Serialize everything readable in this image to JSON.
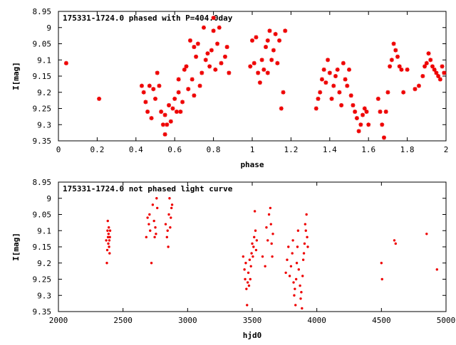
{
  "chart_data": [
    {
      "type": "scatter",
      "title": "175331-1724.0 phased with P=404.0day",
      "xlabel": "phase",
      "ylabel": "I[mag]",
      "xlim": [
        0,
        2
      ],
      "ylim": [
        8.95,
        9.35
      ],
      "y_inverted": true,
      "grid": false,
      "marker_color": "#ee0000",
      "marker": "asterisk",
      "xticks": [
        "0",
        "0.2",
        "0.4",
        "0.6",
        "0.8",
        "1",
        "1.2",
        "1.4",
        "1.6",
        "1.8",
        "2"
      ],
      "yticks": [
        "8.95",
        "9",
        "9.05",
        "9.1",
        "9.15",
        "9.2",
        "9.25",
        "9.3",
        "9.35"
      ],
      "series": [
        {
          "points": [
            [
              0.04,
              9.11
            ],
            [
              0.21,
              9.22
            ],
            [
              0.43,
              9.18
            ],
            [
              0.44,
              9.2
            ],
            [
              0.45,
              9.23
            ],
            [
              0.46,
              9.26
            ],
            [
              0.47,
              9.18
            ],
            [
              0.48,
              9.28
            ],
            [
              0.49,
              9.19
            ],
            [
              0.5,
              9.22
            ],
            [
              0.51,
              9.14
            ],
            [
              0.52,
              9.18
            ],
            [
              0.53,
              9.26
            ],
            [
              0.54,
              9.3
            ],
            [
              0.55,
              9.27
            ],
            [
              0.55,
              9.33
            ],
            [
              0.56,
              9.3
            ],
            [
              0.57,
              9.24
            ],
            [
              0.58,
              9.29
            ],
            [
              0.59,
              9.25
            ],
            [
              0.6,
              9.22
            ],
            [
              0.61,
              9.26
            ],
            [
              0.62,
              9.2
            ],
            [
              0.62,
              9.16
            ],
            [
              0.63,
              9.26
            ],
            [
              0.64,
              9.23
            ],
            [
              0.65,
              9.13
            ],
            [
              0.66,
              9.12
            ],
            [
              0.67,
              9.19
            ],
            [
              0.68,
              9.04
            ],
            [
              0.69,
              9.16
            ],
            [
              0.7,
              9.21
            ],
            [
              0.7,
              9.06
            ],
            [
              0.71,
              9.09
            ],
            [
              0.72,
              9.05
            ],
            [
              0.73,
              9.18
            ],
            [
              0.74,
              9.14
            ],
            [
              0.75,
              9.0
            ],
            [
              0.76,
              9.1
            ],
            [
              0.77,
              9.08
            ],
            [
              0.78,
              9.12
            ],
            [
              0.79,
              9.07
            ],
            [
              0.8,
              9.01
            ],
            [
              0.8,
              8.97
            ],
            [
              0.81,
              9.13
            ],
            [
              0.82,
              9.05
            ],
            [
              0.83,
              9.0
            ],
            [
              0.84,
              9.11
            ],
            [
              0.86,
              9.09
            ],
            [
              0.87,
              9.06
            ],
            [
              0.88,
              9.14
            ],
            [
              0.99,
              9.12
            ],
            [
              1.0,
              9.04
            ],
            [
              1.01,
              9.11
            ],
            [
              1.02,
              9.03
            ],
            [
              1.03,
              9.14
            ],
            [
              1.04,
              9.17
            ],
            [
              1.05,
              9.1
            ],
            [
              1.06,
              9.13
            ],
            [
              1.07,
              9.06
            ],
            [
              1.08,
              9.14
            ],
            [
              1.08,
              9.04
            ],
            [
              1.09,
              9.01
            ],
            [
              1.1,
              9.1
            ],
            [
              1.11,
              9.07
            ],
            [
              1.12,
              9.02
            ],
            [
              1.13,
              9.11
            ],
            [
              1.14,
              9.04
            ],
            [
              1.15,
              9.25
            ],
            [
              1.16,
              9.2
            ],
            [
              1.17,
              9.01
            ],
            [
              1.33,
              9.25
            ],
            [
              1.34,
              9.22
            ],
            [
              1.35,
              9.2
            ],
            [
              1.36,
              9.16
            ],
            [
              1.37,
              9.13
            ],
            [
              1.38,
              9.17
            ],
            [
              1.39,
              9.1
            ],
            [
              1.4,
              9.14
            ],
            [
              1.41,
              9.22
            ],
            [
              1.42,
              9.18
            ],
            [
              1.43,
              9.15
            ],
            [
              1.44,
              9.13
            ],
            [
              1.45,
              9.2
            ],
            [
              1.46,
              9.24
            ],
            [
              1.47,
              9.11
            ],
            [
              1.48,
              9.16
            ],
            [
              1.49,
              9.18
            ],
            [
              1.5,
              9.13
            ],
            [
              1.51,
              9.21
            ],
            [
              1.52,
              9.24
            ],
            [
              1.53,
              9.26
            ],
            [
              1.54,
              9.28
            ],
            [
              1.55,
              9.32
            ],
            [
              1.56,
              9.3
            ],
            [
              1.57,
              9.27
            ],
            [
              1.58,
              9.25
            ],
            [
              1.59,
              9.26
            ],
            [
              1.6,
              9.3
            ],
            [
              1.65,
              9.22
            ],
            [
              1.66,
              9.26
            ],
            [
              1.67,
              9.3
            ],
            [
              1.68,
              9.34
            ],
            [
              1.69,
              9.26
            ],
            [
              1.7,
              9.2
            ],
            [
              1.71,
              9.12
            ],
            [
              1.72,
              9.1
            ],
            [
              1.73,
              9.05
            ],
            [
              1.74,
              9.07
            ],
            [
              1.75,
              9.09
            ],
            [
              1.76,
              9.12
            ],
            [
              1.77,
              9.13
            ],
            [
              1.78,
              9.2
            ],
            [
              1.8,
              9.13
            ],
            [
              1.84,
              9.19
            ],
            [
              1.86,
              9.18
            ],
            [
              1.88,
              9.15
            ],
            [
              1.89,
              9.12
            ],
            [
              1.9,
              9.11
            ],
            [
              1.91,
              9.08
            ],
            [
              1.92,
              9.1
            ],
            [
              1.93,
              9.12
            ],
            [
              1.94,
              9.13
            ],
            [
              1.95,
              9.14
            ],
            [
              1.96,
              9.15
            ],
            [
              1.97,
              9.16
            ],
            [
              1.98,
              9.12
            ],
            [
              1.99,
              9.14
            ]
          ]
        }
      ]
    },
    {
      "type": "scatter",
      "title": "175331-1724.0 not phased light curve",
      "xlabel": "hjd0",
      "ylabel": "I[mag]",
      "xlim": [
        2000,
        5000
      ],
      "ylim": [
        8.95,
        9.35
      ],
      "y_inverted": true,
      "grid": false,
      "marker_color": "#ee0000",
      "marker": "dot",
      "xticks": [
        "2000",
        "2500",
        "3000",
        "3500",
        "4000",
        "4500",
        "5000"
      ],
      "yticks": [
        "8.95",
        "9",
        "9.05",
        "9.1",
        "9.15",
        "9.2",
        "9.25",
        "9.3",
        "9.35"
      ],
      "series": [
        {
          "points": [
            [
              2370,
              9.13
            ],
            [
              2375,
              9.2
            ],
            [
              2378,
              9.16
            ],
            [
              2380,
              9.1
            ],
            [
              2382,
              9.07
            ],
            [
              2384,
              9.12
            ],
            [
              2386,
              9.14
            ],
            [
              2388,
              9.11
            ],
            [
              2390,
              9.09
            ],
            [
              2392,
              9.15
            ],
            [
              2394,
              9.13
            ],
            [
              2396,
              9.17
            ],
            [
              2398,
              9.12
            ],
            [
              2400,
              9.1
            ],
            [
              2680,
              9.12
            ],
            [
              2690,
              9.06
            ],
            [
              2700,
              9.08
            ],
            [
              2705,
              9.05
            ],
            [
              2710,
              9.1
            ],
            [
              2720,
              9.2
            ],
            [
              2730,
              9.02
            ],
            [
              2740,
              9.07
            ],
            [
              2745,
              9.12
            ],
            [
              2750,
              9.09
            ],
            [
              2755,
              9.11
            ],
            [
              2760,
              9.0
            ],
            [
              2765,
              9.03
            ],
            [
              2830,
              9.08
            ],
            [
              2840,
              9.12
            ],
            [
              2845,
              9.1
            ],
            [
              2850,
              9.15
            ],
            [
              2855,
              9.05
            ],
            [
              2860,
              9.0
            ],
            [
              2865,
              9.09
            ],
            [
              2870,
              9.06
            ],
            [
              2875,
              9.03
            ],
            [
              2880,
              9.02
            ],
            [
              3430,
              9.18
            ],
            [
              3440,
              9.22
            ],
            [
              3445,
              9.25
            ],
            [
              3450,
              9.2
            ],
            [
              3455,
              9.28
            ],
            [
              3460,
              9.33
            ],
            [
              3465,
              9.26
            ],
            [
              3470,
              9.23
            ],
            [
              3475,
              9.27
            ],
            [
              3480,
              9.19
            ],
            [
              3485,
              9.25
            ],
            [
              3490,
              9.21
            ],
            [
              3495,
              9.17
            ],
            [
              3500,
              9.14
            ],
            [
              3505,
              9.18
            ],
            [
              3510,
              9.15
            ],
            [
              3515,
              9.12
            ],
            [
              3520,
              9.04
            ],
            [
              3525,
              9.1
            ],
            [
              3530,
              9.16
            ],
            [
              3535,
              9.13
            ],
            [
              3580,
              9.18
            ],
            [
              3600,
              9.21
            ],
            [
              3610,
              9.09
            ],
            [
              3620,
              9.13
            ],
            [
              3630,
              9.05
            ],
            [
              3640,
              9.03
            ],
            [
              3645,
              9.08
            ],
            [
              3650,
              9.14
            ],
            [
              3655,
              9.18
            ],
            [
              3660,
              9.11
            ],
            [
              3760,
              9.23
            ],
            [
              3770,
              9.19
            ],
            [
              3780,
              9.15
            ],
            [
              3790,
              9.24
            ],
            [
              3800,
              9.21
            ],
            [
              3810,
              9.17
            ],
            [
              3815,
              9.13
            ],
            [
              3820,
              9.26
            ],
            [
              3825,
              9.3
            ],
            [
              3830,
              9.28
            ],
            [
              3835,
              9.33
            ],
            [
              3840,
              9.25
            ],
            [
              3845,
              9.2
            ],
            [
              3850,
              9.15
            ],
            [
              3855,
              9.1
            ],
            [
              3860,
              9.22
            ],
            [
              3870,
              9.27
            ],
            [
              3875,
              9.31
            ],
            [
              3880,
              9.29
            ],
            [
              3885,
              9.34
            ],
            [
              3890,
              9.24
            ],
            [
              3895,
              9.19
            ],
            [
              3900,
              9.17
            ],
            [
              3905,
              9.14
            ],
            [
              3910,
              9.08
            ],
            [
              3915,
              9.1
            ],
            [
              3920,
              9.05
            ],
            [
              3925,
              9.12
            ],
            [
              3930,
              9.15
            ],
            [
              4500,
              9.2
            ],
            [
              4505,
              9.25
            ],
            [
              4600,
              9.13
            ],
            [
              4610,
              9.14
            ],
            [
              4850,
              9.11
            ],
            [
              4930,
              9.22
            ]
          ]
        }
      ]
    }
  ]
}
